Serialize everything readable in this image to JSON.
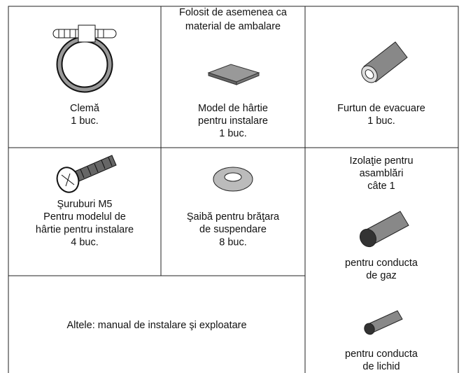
{
  "cells": [
    {
      "lines": [
        "Clemă",
        "1 buc."
      ]
    },
    {
      "note": [
        "Folosit de asemenea ca",
        "material de ambalare"
      ],
      "lines": [
        "Model de hârtie",
        "pentru instalare",
        "1 buc."
      ]
    },
    {
      "lines": [
        "Furtun de evacuare",
        "1 buc."
      ]
    },
    {
      "lines": [
        "Şuruburi M5",
        "Pentru modelul de",
        "hârtie pentru instalare",
        "4 buc."
      ]
    },
    {
      "lines": [
        "Şaibă pentru brăţara",
        "de suspendare",
        "8 buc."
      ]
    },
    {
      "lines": [
        "Izolaţie pentru",
        "asamblări",
        "câte 1"
      ],
      "items": [
        [
          "pentru conducta",
          "de gaz"
        ],
        [
          "pentru conducta",
          "de lichid"
        ]
      ]
    },
    {
      "lines": [
        "Altele: manual de instalare şi exploatare"
      ]
    }
  ]
}
